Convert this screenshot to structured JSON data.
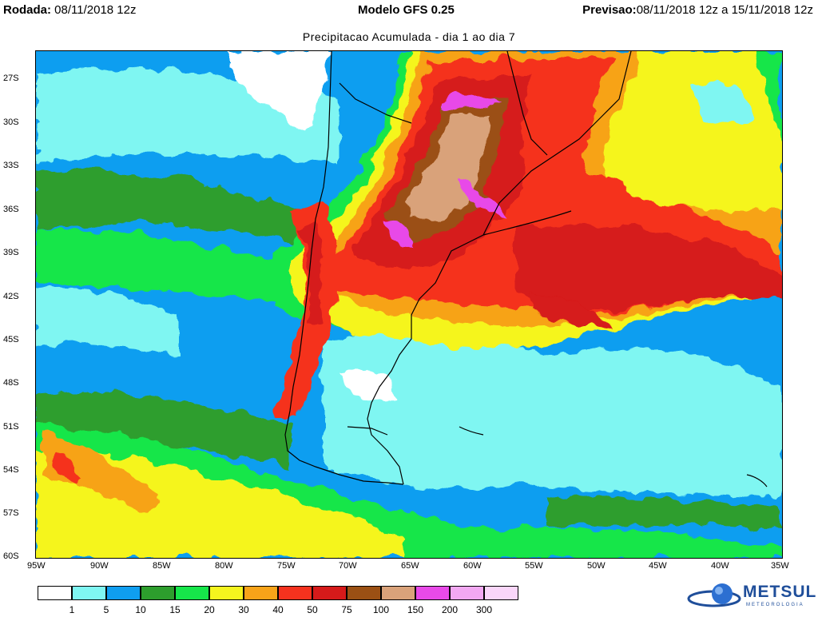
{
  "header": {
    "run_label": "Rodada:",
    "run_value": "08/11/2018 12z",
    "model": "Modelo GFS 0.25",
    "forecast_label": "Previsao:",
    "forecast_value": "08/11/2018 12z a 15/11/2018 12z"
  },
  "subtitle": "Precipitacao Acumulada - dia 1 ao dia 7",
  "map": {
    "lat_ticks": [
      "27S",
      "30S",
      "33S",
      "36S",
      "39S",
      "42S",
      "45S",
      "48S",
      "51S",
      "54S",
      "57S",
      "60S"
    ],
    "lon_ticks": [
      "95W",
      "90W",
      "85W",
      "80W",
      "75W",
      "70W",
      "65W",
      "60W",
      "55W",
      "50W",
      "45W",
      "40W",
      "35W"
    ],
    "extent": {
      "lon_min": -95,
      "lon_max": -35,
      "lat_max": -25,
      "lat_min": -60
    }
  },
  "legend": {
    "levels": [
      "1",
      "5",
      "10",
      "15",
      "20",
      "30",
      "40",
      "50",
      "75",
      "100",
      "150",
      "200",
      "300"
    ],
    "colors": [
      "#ffffff",
      "#7ff6f2",
      "#0f9ef0",
      "#2d9e2d",
      "#16e64a",
      "#f5f51e",
      "#f7a319",
      "#f5321e",
      "#d61a1a",
      "#9b5014",
      "#d9a27a",
      "#e84ae8",
      "#f2a8f2",
      "#fad6fa"
    ]
  },
  "logo": {
    "name": "METSUL",
    "tagline": "METEOROLOGIA"
  }
}
